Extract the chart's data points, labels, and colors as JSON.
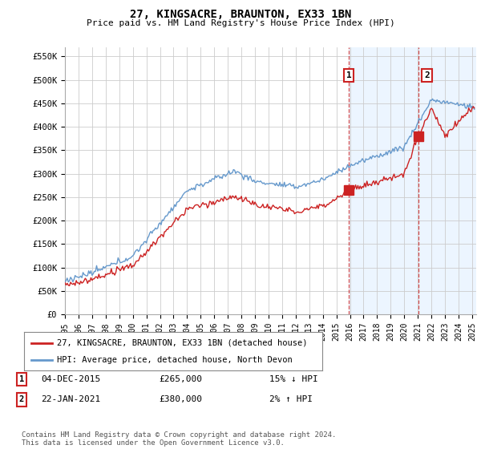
{
  "title": "27, KINGSACRE, BRAUNTON, EX33 1BN",
  "subtitle": "Price paid vs. HM Land Registry's House Price Index (HPI)",
  "ylabel_ticks": [
    "£0",
    "£50K",
    "£100K",
    "£150K",
    "£200K",
    "£250K",
    "£300K",
    "£350K",
    "£400K",
    "£450K",
    "£500K",
    "£550K"
  ],
  "ytick_values": [
    0,
    50000,
    100000,
    150000,
    200000,
    250000,
    300000,
    350000,
    400000,
    450000,
    500000,
    550000
  ],
  "ylim": [
    0,
    570000
  ],
  "xlim_start": 1995.0,
  "xlim_end": 2025.3,
  "hpi_color": "#6699cc",
  "price_color": "#cc2222",
  "sale1_date": 2015.92,
  "sale1_price": 265000,
  "sale2_date": 2021.07,
  "sale2_price": 380000,
  "highlight_start": 2015.92,
  "legend1_text": "27, KINGSACRE, BRAUNTON, EX33 1BN (detached house)",
  "legend2_text": "HPI: Average price, detached house, North Devon",
  "annotation1_date": "04-DEC-2015",
  "annotation1_price": "£265,000",
  "annotation1_hpi": "15% ↓ HPI",
  "annotation2_date": "22-JAN-2021",
  "annotation2_price": "£380,000",
  "annotation2_hpi": "2% ↑ HPI",
  "footer": "Contains HM Land Registry data © Crown copyright and database right 2024.\nThis data is licensed under the Open Government Licence v3.0.",
  "bg_color": "#ffffff",
  "grid_color": "#cccccc",
  "highlight_bg": "#ddeeff"
}
